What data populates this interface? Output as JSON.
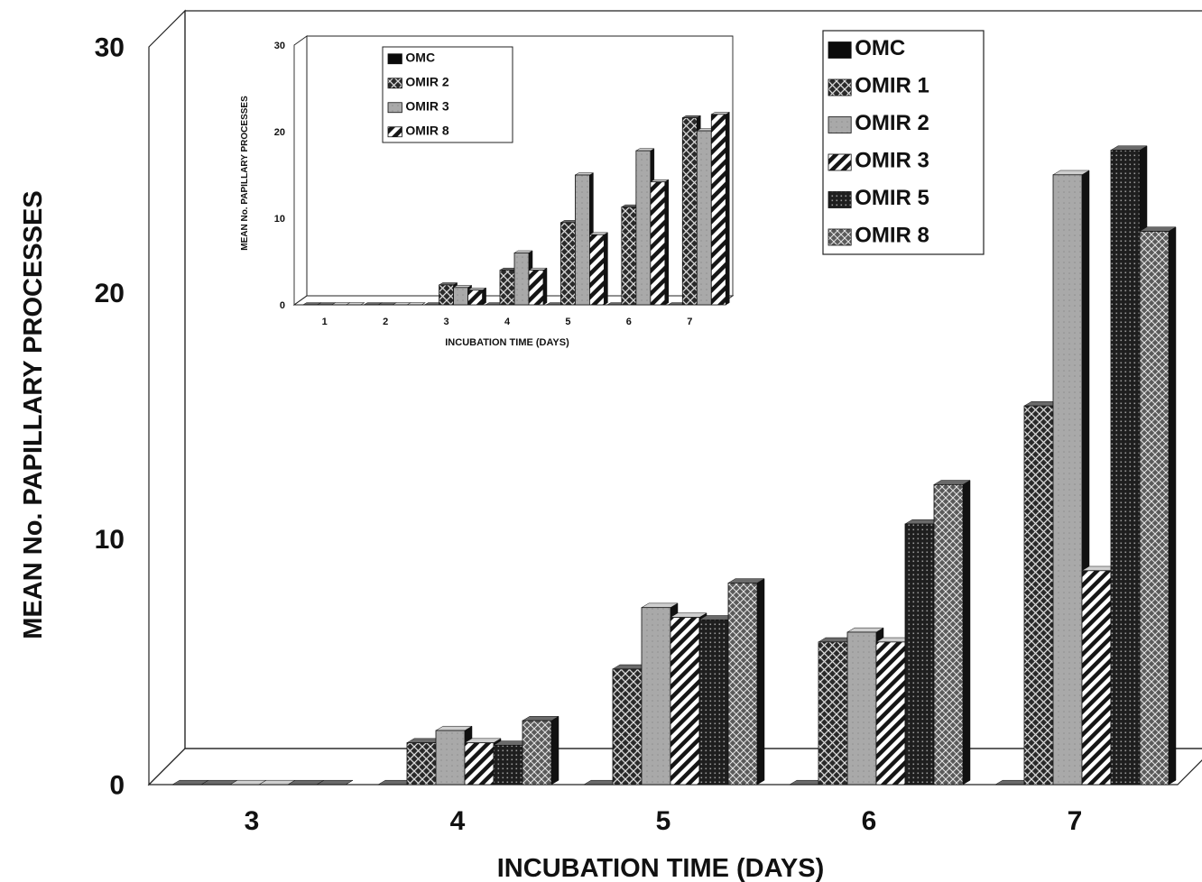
{
  "chart_data": [
    {
      "type": "bar",
      "ylabel": "MEAN No. PAPILLARY PROCESSES",
      "xlabel": "INCUBATION TIME (DAYS)",
      "ylim": [
        0,
        30
      ],
      "yticks": [
        "0",
        "10",
        "20",
        "30"
      ],
      "categories": [
        "3",
        "4",
        "5",
        "6",
        "7"
      ],
      "legend_position": "top-right",
      "series": [
        {
          "name": "OMC",
          "pattern": "solid-black",
          "values": [
            0,
            0,
            0,
            0,
            0
          ]
        },
        {
          "name": "OMIR 1",
          "pattern": "dark-crosshatch",
          "values": [
            0,
            1.7,
            4.7,
            5.8,
            15.4
          ]
        },
        {
          "name": "OMIR 2",
          "pattern": "light-gray",
          "values": [
            0,
            2.2,
            7.2,
            6.2,
            24.8
          ]
        },
        {
          "name": "OMIR 3",
          "pattern": "diagonal-stripes",
          "values": [
            0,
            1.7,
            6.8,
            5.8,
            8.7
          ]
        },
        {
          "name": "OMIR 5",
          "pattern": "dark-dots",
          "values": [
            0,
            1.6,
            6.7,
            10.6,
            25.8
          ]
        },
        {
          "name": "OMIR 8",
          "pattern": "medium-crosshatch",
          "values": [
            0,
            2.6,
            8.2,
            12.2,
            22.5
          ]
        }
      ]
    },
    {
      "type": "bar",
      "ylabel": "MEAN No. PAPILLARY PROCESSES",
      "xlabel": "INCUBATION TIME (DAYS)",
      "ylim": [
        0,
        30
      ],
      "yticks": [
        "0",
        "10",
        "20",
        "30"
      ],
      "categories": [
        "1",
        "2",
        "3",
        "4",
        "5",
        "6",
        "7"
      ],
      "legend_position": "top-left",
      "series": [
        {
          "name": "OMC",
          "pattern": "solid-black",
          "values": [
            0,
            0,
            0,
            0,
            0,
            0,
            0
          ]
        },
        {
          "name": "OMIR 2",
          "pattern": "dark-crosshatch",
          "values": [
            0,
            0,
            2.3,
            4.0,
            9.5,
            11.3,
            21.6
          ]
        },
        {
          "name": "OMIR 3",
          "pattern": "light-gray",
          "values": [
            0,
            0,
            2.0,
            6.0,
            15.0,
            17.8,
            20.1
          ]
        },
        {
          "name": "OMIR 8",
          "pattern": "diagonal-stripes",
          "values": [
            0,
            0,
            1.7,
            4.0,
            8.1,
            14.2,
            22.0
          ]
        }
      ]
    }
  ]
}
